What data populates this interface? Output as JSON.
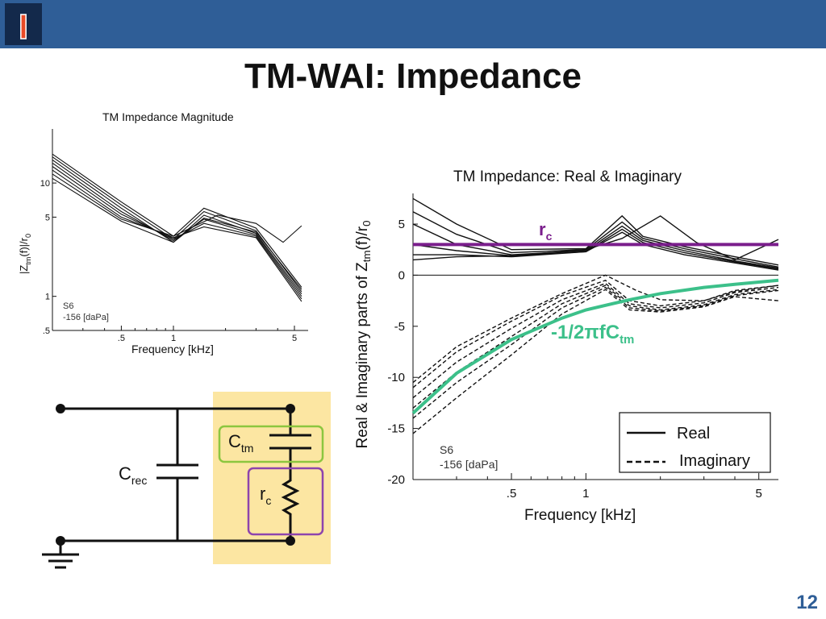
{
  "slide": {
    "title": "TM-WAI: Impedance",
    "page_number": "12",
    "logo_glyph": "I"
  },
  "colors": {
    "header_bar": "#2f5e97",
    "logo_bg": "#13294b",
    "rc_line": "#7a1e8c",
    "capacitive_curve": "#3cc08a",
    "circuit_highlight": "#fce6a2",
    "ctm_box": "#8cc63f",
    "rc_box": "#8e44ad"
  },
  "chart_data": [
    {
      "type": "line",
      "title": "TM Impedance Magnitude",
      "xlabel": "Frequency [kHz]",
      "ylabel": "|Z_tm(f)|/r_0",
      "xscale": "log",
      "yscale": "log",
      "xlim": [
        0.2,
        6
      ],
      "ylim": [
        0.5,
        30
      ],
      "x_tick_labels": [
        ".5",
        "1",
        "5"
      ],
      "y_tick_labels": [
        "10",
        "5",
        "1",
        ".5"
      ],
      "annotation": [
        "S6",
        "-156 [daPa]"
      ],
      "series": [
        {
          "values": [
            [
              0.2,
              18
            ],
            [
              0.5,
              6.8
            ],
            [
              1,
              3.4
            ],
            [
              1.5,
              6.0
            ],
            [
              3,
              4.0
            ],
            [
              5.5,
              1.2
            ]
          ]
        },
        {
          "values": [
            [
              0.2,
              17
            ],
            [
              0.5,
              6.4
            ],
            [
              1,
              3.2
            ],
            [
              1.5,
              5.6
            ],
            [
              3,
              3.8
            ],
            [
              5.5,
              1.1
            ]
          ]
        },
        {
          "values": [
            [
              0.2,
              16
            ],
            [
              0.5,
              6.0
            ],
            [
              1,
              3.0
            ],
            [
              1.5,
              5.2
            ],
            [
              3,
              3.6
            ],
            [
              5.5,
              1.05
            ]
          ]
        },
        {
          "values": [
            [
              0.2,
              15
            ],
            [
              0.5,
              5.6
            ],
            [
              1,
              3.1
            ],
            [
              1.5,
              4.8
            ],
            [
              3,
              3.5
            ],
            [
              5.5,
              1.0
            ]
          ]
        },
        {
          "values": [
            [
              0.2,
              14
            ],
            [
              0.5,
              5.3
            ],
            [
              1,
              3.2
            ],
            [
              1.5,
              4.4
            ],
            [
              3,
              3.4
            ],
            [
              5.5,
              0.95
            ]
          ]
        },
        {
          "values": [
            [
              0.2,
              13
            ],
            [
              0.5,
              5.0
            ],
            [
              1,
              3.3
            ],
            [
              1.5,
              4.1
            ],
            [
              3,
              3.3
            ],
            [
              5.5,
              0.9
            ]
          ]
        },
        {
          "values": [
            [
              0.2,
              12
            ],
            [
              0.5,
              4.8
            ],
            [
              1,
              3.4
            ],
            [
              1.8,
              5.2
            ],
            [
              3,
              4.4
            ],
            [
              4.3,
              3.0
            ],
            [
              5.5,
              4.2
            ]
          ]
        },
        {
          "values": [
            [
              0.2,
              11
            ],
            [
              0.5,
              4.6
            ],
            [
              1,
              3.0
            ],
            [
              1.5,
              4.9
            ],
            [
              3,
              3.7
            ],
            [
              5.5,
              1.15
            ]
          ]
        }
      ]
    },
    {
      "type": "line",
      "title": "TM Impedance: Real & Imaginary",
      "xlabel": "Frequency [kHz]",
      "ylabel": "Real & Imaginary parts of Z_tm(f)/r_0",
      "xscale": "log",
      "xlim": [
        0.2,
        6
      ],
      "ylim": [
        -20,
        8
      ],
      "x_tick_labels": [
        ".5",
        "1",
        "5"
      ],
      "y_tick_labels": [
        "5",
        "0",
        "-5",
        "-10",
        "-15",
        "-20"
      ],
      "annotation": [
        "S6",
        "-156 [daPa]"
      ],
      "legend": {
        "position": "bottom-right",
        "entries": [
          "Real",
          "Imaginary"
        ]
      },
      "overlay_labels": {
        "rc": "r",
        "rc_sub": "c",
        "cap": "-1/2πfC",
        "cap_sub": "tm"
      },
      "rc_value": 3,
      "real_series": [
        {
          "values": [
            [
              0.2,
              7.5
            ],
            [
              0.3,
              5.0
            ],
            [
              0.5,
              2.5
            ],
            [
              1,
              2.6
            ],
            [
              1.4,
              5.8
            ],
            [
              1.7,
              3.8
            ],
            [
              2.5,
              2.8
            ],
            [
              4,
              1.8
            ],
            [
              6,
              1.0
            ]
          ]
        },
        {
          "values": [
            [
              0.2,
              6.2
            ],
            [
              0.3,
              4.0
            ],
            [
              0.5,
              2.2
            ],
            [
              1,
              2.5
            ],
            [
              1.4,
              5.2
            ],
            [
              1.7,
              3.6
            ],
            [
              2.5,
              2.6
            ],
            [
              4,
              1.6
            ],
            [
              6,
              0.8
            ]
          ]
        },
        {
          "values": [
            [
              0.2,
              5.0
            ],
            [
              0.3,
              3.0
            ],
            [
              0.5,
              2.0
            ],
            [
              1,
              2.4
            ],
            [
              1.4,
              4.8
            ],
            [
              1.7,
              3.4
            ],
            [
              2.5,
              2.4
            ],
            [
              4,
              1.4
            ],
            [
              6,
              0.7
            ]
          ]
        },
        {
          "values": [
            [
              0.2,
              3.0
            ],
            [
              0.3,
              2.4
            ],
            [
              0.5,
              1.9
            ],
            [
              1,
              2.3
            ],
            [
              1.4,
              4.5
            ],
            [
              1.7,
              3.2
            ],
            [
              2.5,
              2.2
            ],
            [
              4,
              1.3
            ],
            [
              6,
              0.6
            ]
          ]
        },
        {
          "values": [
            [
              0.2,
              2.0
            ],
            [
              0.3,
              2.0
            ],
            [
              0.5,
              1.8
            ],
            [
              1,
              2.3
            ],
            [
              1.4,
              4.2
            ],
            [
              1.7,
              3.0
            ],
            [
              2.5,
              2.0
            ],
            [
              4,
              1.2
            ],
            [
              6,
              0.5
            ]
          ]
        },
        {
          "values": [
            [
              0.2,
              1.5
            ],
            [
              0.3,
              1.8
            ],
            [
              0.5,
              1.9
            ],
            [
              1,
              2.5
            ],
            [
              1.4,
              3.6
            ],
            [
              2.0,
              5.8
            ],
            [
              2.8,
              3.2
            ],
            [
              4,
              1.5
            ],
            [
              6,
              3.5
            ]
          ]
        }
      ],
      "imag_series": [
        {
          "values": [
            [
              0.2,
              -11
            ],
            [
              0.3,
              -7.5
            ],
            [
              0.5,
              -4.5
            ],
            [
              0.8,
              -2.0
            ],
            [
              1.2,
              -0.5
            ],
            [
              1.5,
              -2.5
            ],
            [
              2,
              -3.0
            ],
            [
              3,
              -2.5
            ],
            [
              4,
              -1.5
            ],
            [
              6,
              -1.0
            ]
          ]
        },
        {
          "values": [
            [
              0.2,
              -12
            ],
            [
              0.3,
              -8.5
            ],
            [
              0.5,
              -5.2
            ],
            [
              0.8,
              -2.4
            ],
            [
              1.2,
              -0.8
            ],
            [
              1.5,
              -2.8
            ],
            [
              2,
              -3.2
            ],
            [
              3,
              -2.7
            ],
            [
              4,
              -1.7
            ],
            [
              6,
              -1.2
            ]
          ]
        },
        {
          "values": [
            [
              0.2,
              -13
            ],
            [
              0.3,
              -9.5
            ],
            [
              0.5,
              -6.0
            ],
            [
              0.8,
              -2.8
            ],
            [
              1.2,
              -1.0
            ],
            [
              1.5,
              -3.0
            ],
            [
              2,
              -3.4
            ],
            [
              3,
              -2.9
            ],
            [
              4,
              -1.9
            ],
            [
              6,
              -1.4
            ]
          ]
        },
        {
          "values": [
            [
              0.2,
              -14
            ],
            [
              0.3,
              -10.5
            ],
            [
              0.5,
              -6.8
            ],
            [
              0.8,
              -3.2
            ],
            [
              1.2,
              -1.2
            ],
            [
              1.5,
              -3.2
            ],
            [
              2,
              -3.5
            ],
            [
              3,
              -3.0
            ],
            [
              4,
              -2.0
            ],
            [
              6,
              -1.5
            ]
          ]
        },
        {
          "values": [
            [
              0.2,
              -15.5
            ],
            [
              0.3,
              -12
            ],
            [
              0.5,
              -7.8
            ],
            [
              0.8,
              -3.8
            ],
            [
              1.2,
              -1.4
            ],
            [
              1.5,
              -3.4
            ],
            [
              2,
              -3.6
            ],
            [
              3,
              -3.1
            ],
            [
              4,
              -2.1
            ],
            [
              6,
              -2.5
            ]
          ]
        },
        {
          "values": [
            [
              0.2,
              -10.5
            ],
            [
              0.3,
              -7.0
            ],
            [
              0.5,
              -4.2
            ],
            [
              0.8,
              -1.8
            ],
            [
              1.2,
              0
            ],
            [
              1.6,
              -1.5
            ],
            [
              2,
              -2.4
            ],
            [
              3,
              -2.5
            ],
            [
              4,
              -1.6
            ],
            [
              6,
              -1.0
            ]
          ]
        }
      ],
      "capacitive_curve": {
        "values": [
          [
            0.2,
            -13.5
          ],
          [
            0.3,
            -9.6
          ],
          [
            0.5,
            -6.3
          ],
          [
            0.8,
            -4.2
          ],
          [
            1,
            -3.4
          ],
          [
            1.5,
            -2.4
          ],
          [
            2,
            -1.8
          ],
          [
            3,
            -1.2
          ],
          [
            4,
            -0.9
          ],
          [
            6,
            -0.5
          ]
        ]
      }
    }
  ],
  "circuit": {
    "c_rec": {
      "main": "C",
      "sub": "rec"
    },
    "c_tm": {
      "main": "C",
      "sub": "tm"
    },
    "r_c": {
      "main": "r",
      "sub": "c"
    }
  }
}
